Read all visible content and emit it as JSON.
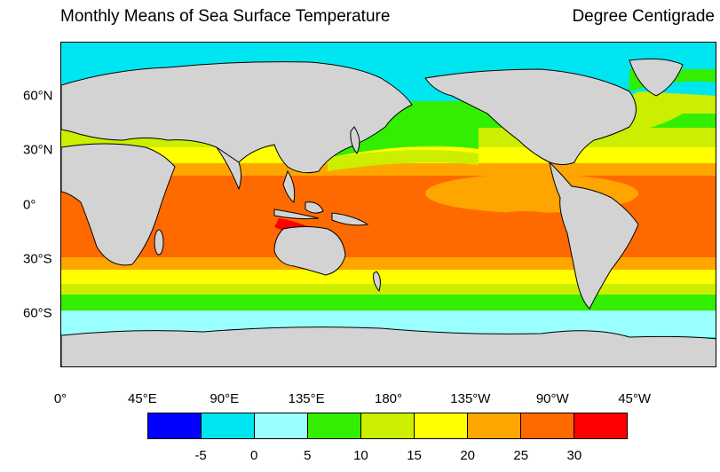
{
  "title": "Monthly Means of Sea Surface Temperature",
  "units": "Degree Centigrade",
  "y_axis": {
    "labels": [
      "60°N",
      "30°N",
      "0°",
      "30°S",
      "60°S"
    ],
    "values": [
      60,
      30,
      0,
      -30,
      -60
    ]
  },
  "x_axis": {
    "labels": [
      "0°",
      "45°E",
      "90°E",
      "135°E",
      "180°",
      "135°W",
      "90°W",
      "45°W"
    ],
    "values": [
      0,
      45,
      90,
      135,
      180,
      225,
      270,
      315
    ]
  },
  "map_extent": {
    "lon": [
      0,
      360
    ],
    "lat": [
      -90,
      90
    ]
  },
  "colorbar": {
    "colors": [
      "#0000ff",
      "#00e6f0",
      "#99ffff",
      "#33ee00",
      "#ccee00",
      "#ffff00",
      "#ffa500",
      "#ff6a00",
      "#ff0000"
    ],
    "tick_labels": [
      "-5",
      "0",
      "5",
      "10",
      "15",
      "20",
      "25",
      "30"
    ]
  },
  "colors": {
    "land": "#d3d3d3",
    "coastline": "#000000"
  }
}
